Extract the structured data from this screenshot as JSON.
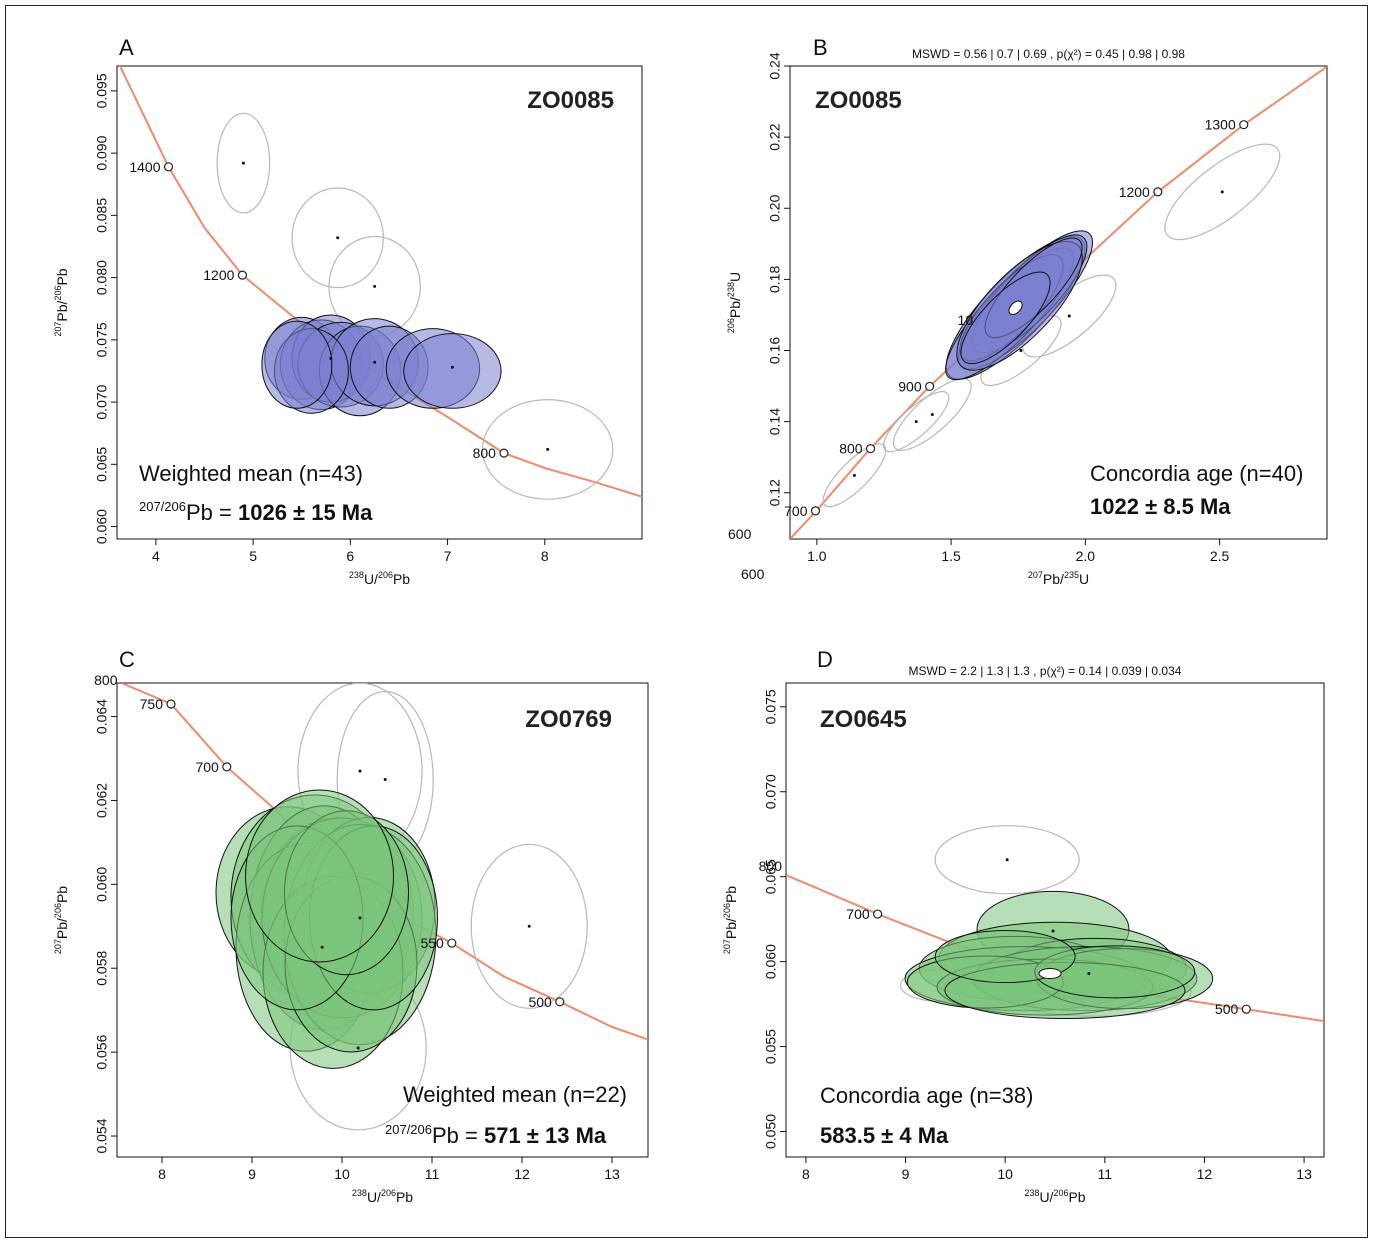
{
  "panels": [
    {
      "letter": "A",
      "sample": "ZO0085",
      "mswd_line": "",
      "x_label": {
        "num": "238",
        "num_el": "U/",
        "den": "206",
        "den_el": "Pb"
      },
      "y_label": {
        "num": "207",
        "num_el": "Pb/",
        "den": "206",
        "den_el": "Pb"
      },
      "result_line1": "Weighted mean (n=43)",
      "result_line2_sup": "207/206",
      "result_line2_el": "Pb = ",
      "result_line2_value": "1026 ± 15 Ma",
      "fill_color": "#7b7fd0"
    },
    {
      "letter": "B",
      "sample": "ZO0085",
      "mswd_line": "MSWD = 0.56 | 0.7 | 0.69 , p(χ²) = 0.45 | 0.98 | 0.98",
      "x_label": {
        "num": "207",
        "num_el": "Pb/",
        "den": "235",
        "den_el": "U"
      },
      "y_label": {
        "num": "206",
        "num_el": "Pb/",
        "den": "238",
        "den_el": "U"
      },
      "result_line1": "Concordia age (n=40)",
      "result_line2_value": "1022",
      "result_line2_rest": " ± 8.5 Ma",
      "fill_color": "#7b7fd0",
      "extra_labels": [
        "600",
        "600"
      ]
    },
    {
      "letter": "C",
      "sample": "ZO0769",
      "mswd_line": "",
      "x_label": {
        "num": "238",
        "num_el": "U/",
        "den": "206",
        "den_el": "Pb"
      },
      "y_label": {
        "num": "207",
        "num_el": "Pb/",
        "den": "206",
        "den_el": "Pb"
      },
      "result_line1": "Weighted mean (n=22)",
      "result_line2_sup": "207/206",
      "result_line2_el": "Pb = ",
      "result_line2_value": "571 ± 13 Ma",
      "fill_color": "#7cc57c"
    },
    {
      "letter": "D",
      "sample": "ZO0645",
      "mswd_line": "MSWD = 2.2 | 1.3 | 1.3 , p(χ²) = 0.14 | 0.039 | 0.034",
      "x_label": {
        "num": "238",
        "num_el": "U/",
        "den": "206",
        "den_el": "Pb"
      },
      "y_label": {
        "num": "207",
        "num_el": "Pb/",
        "den": "206",
        "den_el": "Pb"
      },
      "result_line1": "Concordia age (n=38)",
      "result_line2_value": "583.5 ± 4 Ma",
      "fill_color": "#7cc57c"
    }
  ],
  "chart_data": [
    {
      "type": "scatter",
      "panel": "A",
      "xlim": [
        3.6,
        9.0
      ],
      "ylim": [
        0.059,
        0.097
      ],
      "x_ticks": [
        4,
        5,
        6,
        7,
        8
      ],
      "y_ticks": [
        0.06,
        0.065,
        0.07,
        0.075,
        0.08,
        0.085,
        0.09,
        0.095
      ],
      "y_tick_labels": [
        "0.060",
        "0.065",
        "0.070",
        "0.075",
        "0.080",
        "0.085",
        "0.090",
        "0.095"
      ],
      "concordia_curve": "Tera-Wasserburg",
      "concordia_ages_ma": [
        1400,
        1200,
        800
      ],
      "concordia_markers": [
        {
          "label": "1400",
          "x": 4.13,
          "y": 0.0889
        },
        {
          "label": "1200",
          "x": 4.89,
          "y": 0.0802
        },
        {
          "label": "800",
          "x": 7.58,
          "y": 0.0659
        }
      ],
      "ellipses_selected": [
        {
          "x": 5.5,
          "y": 0.0735,
          "rx": 0.38,
          "ry": 0.0033
        },
        {
          "x": 5.7,
          "y": 0.073,
          "rx": 0.42,
          "ry": 0.0036
        },
        {
          "x": 5.8,
          "y": 0.0735,
          "rx": 0.4,
          "ry": 0.0035
        },
        {
          "x": 5.9,
          "y": 0.073,
          "rx": 0.44,
          "ry": 0.0034
        },
        {
          "x": 6.1,
          "y": 0.0725,
          "rx": 0.42,
          "ry": 0.0036
        },
        {
          "x": 6.25,
          "y": 0.0732,
          "rx": 0.45,
          "ry": 0.0035
        },
        {
          "x": 6.4,
          "y": 0.0728,
          "rx": 0.4,
          "ry": 0.0033
        },
        {
          "x": 6.85,
          "y": 0.0727,
          "rx": 0.48,
          "ry": 0.0032
        },
        {
          "x": 7.05,
          "y": 0.0725,
          "rx": 0.5,
          "ry": 0.003
        },
        {
          "x": 5.6,
          "y": 0.0725,
          "rx": 0.38,
          "ry": 0.0034
        },
        {
          "x": 5.45,
          "y": 0.073,
          "rx": 0.36,
          "ry": 0.0035
        }
      ],
      "ellipses_rejected": [
        {
          "x": 4.9,
          "y": 0.0892,
          "rx": 0.27,
          "ry": 0.004
        },
        {
          "x": 5.87,
          "y": 0.0832,
          "rx": 0.47,
          "ry": 0.004
        },
        {
          "x": 6.25,
          "y": 0.0793,
          "rx": 0.47,
          "ry": 0.004
        },
        {
          "x": 8.03,
          "y": 0.0662,
          "rx": 0.67,
          "ry": 0.004
        }
      ],
      "result": {
        "label": "Weighted mean (n=43)",
        "age_ma": 1026,
        "uncertainty_ma": 15
      }
    },
    {
      "type": "scatter",
      "panel": "B",
      "xlim": [
        0.9,
        2.9
      ],
      "ylim": [
        0.107,
        0.24
      ],
      "x_ticks": [
        1.0,
        1.5,
        2.0,
        2.5
      ],
      "x_tick_labels": [
        "1.0",
        "1.5",
        "2.0",
        "2.5"
      ],
      "y_ticks": [
        0.12,
        0.14,
        0.16,
        0.18,
        0.2,
        0.22,
        0.24
      ],
      "y_tick_labels": [
        "0.12",
        "0.14",
        "0.16",
        "0.18",
        "0.20",
        "0.22",
        "0.24"
      ],
      "concordia_curve": "Wetherill",
      "concordia_markers": [
        {
          "label": "700",
          "x": 0.995,
          "y": 0.1149
        },
        {
          "label": "800",
          "x": 1.2,
          "y": 0.1324
        },
        {
          "label": "900",
          "x": 1.42,
          "y": 0.1499
        },
        {
          "label": "1200",
          "x": 2.27,
          "y": 0.2046
        },
        {
          "label": "1300",
          "x": 2.59,
          "y": 0.2235
        }
      ],
      "ellipses_selected_center": {
        "x": 1.74,
        "y": 0.172
      },
      "ellipses_rejected": [
        {
          "x": 2.51,
          "y": 0.2046
        },
        {
          "x": 1.94,
          "y": 0.1697
        },
        {
          "x": 1.76,
          "y": 0.16
        },
        {
          "x": 1.43,
          "y": 0.142
        },
        {
          "x": 1.37,
          "y": 0.14
        },
        {
          "x": 1.14,
          "y": 0.1249
        }
      ],
      "result": {
        "label": "Concordia age (n=40)",
        "age_ma": 1022,
        "uncertainty_ma": 8.5
      }
    },
    {
      "type": "scatter",
      "panel": "C",
      "xlim": [
        7.5,
        13.4
      ],
      "ylim": [
        0.0535,
        0.0648
      ],
      "x_ticks": [
        8,
        9,
        10,
        11,
        12,
        13
      ],
      "y_ticks": [
        0.054,
        0.056,
        0.058,
        0.06,
        0.062,
        0.064
      ],
      "y_tick_labels": [
        "0.054",
        "0.056",
        "0.058",
        "0.060",
        "0.062",
        "0.064"
      ],
      "concordia_curve": "Tera-Wasserburg",
      "concordia_markers": [
        {
          "label": "800",
          "x": 7.55,
          "y": 0.0648
        },
        {
          "label": "750",
          "x": 8.1,
          "y": 0.0643
        },
        {
          "label": "700",
          "x": 8.72,
          "y": 0.0628
        },
        {
          "label": "550",
          "x": 11.22,
          "y": 0.0586
        },
        {
          "label": "500",
          "x": 12.42,
          "y": 0.0572
        }
      ],
      "ellipses_rejected_centers": [
        {
          "x": 10.2,
          "y": 0.0627
        },
        {
          "x": 10.48,
          "y": 0.0625
        },
        {
          "x": 12.08,
          "y": 0.059
        },
        {
          "x": 10.18,
          "y": 0.0561
        }
      ],
      "result": {
        "label": "Weighted mean (n=22)",
        "age_ma": 571,
        "uncertainty_ma": 13
      }
    },
    {
      "type": "scatter",
      "panel": "D",
      "xlim": [
        7.8,
        13.2
      ],
      "ylim": [
        0.0485,
        0.0764
      ],
      "x_ticks": [
        8,
        9,
        10,
        11,
        12,
        13
      ],
      "y_ticks": [
        0.05,
        0.055,
        0.06,
        0.065,
        0.07,
        0.075
      ],
      "y_tick_labels": [
        "0.050",
        "0.055",
        "0.060",
        "0.065",
        "0.070",
        "0.075"
      ],
      "concordia_curve": "Tera-Wasserburg",
      "concordia_markers": [
        {
          "label": "800",
          "x": 7.8,
          "y": 0.0651
        },
        {
          "label": "700",
          "x": 8.72,
          "y": 0.0628
        },
        {
          "label": "500",
          "x": 12.42,
          "y": 0.0572
        }
      ],
      "ellipses_rejected_centers": [
        {
          "x": 10.02,
          "y": 0.066
        }
      ],
      "concordia_point": {
        "x": 10.45,
        "y": 0.0593
      },
      "result": {
        "label": "Concordia age (n=38)",
        "age_ma": 583.5,
        "uncertainty_ma": 4
      }
    }
  ]
}
